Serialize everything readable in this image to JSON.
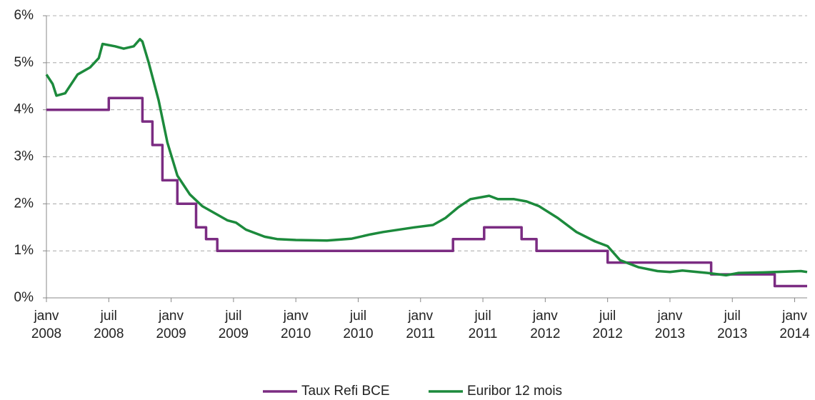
{
  "chart_data": {
    "type": "line",
    "xlim": [
      2008,
      2014.1
    ],
    "xticks": [
      {
        "value": 2008,
        "label": "janv 2008"
      },
      {
        "value": 2008.5,
        "label": "juil 2008"
      },
      {
        "value": 2009,
        "label": "janv 2009"
      },
      {
        "value": 2009.5,
        "label": "juil 2009"
      },
      {
        "value": 2010,
        "label": "janv 2010"
      },
      {
        "value": 2010.5,
        "label": "juil 2010"
      },
      {
        "value": 2011,
        "label": "janv 2011"
      },
      {
        "value": 2011.5,
        "label": "juil 2011"
      },
      {
        "value": 2012,
        "label": "janv 2012"
      },
      {
        "value": 2012.5,
        "label": "juil 2012"
      },
      {
        "value": 2013,
        "label": "janv 2013"
      },
      {
        "value": 2013.5,
        "label": "juil 2013"
      },
      {
        "value": 2014,
        "label": "janv 2014"
      }
    ],
    "ylim": [
      0,
      6
    ],
    "yticks": [
      {
        "value": 0,
        "label": "0%"
      },
      {
        "value": 1,
        "label": "1%"
      },
      {
        "value": 2,
        "label": "2%"
      },
      {
        "value": 3,
        "label": "3%"
      },
      {
        "value": 4,
        "label": "4%"
      },
      {
        "value": 5,
        "label": "5%"
      },
      {
        "value": 6,
        "label": "6%"
      }
    ],
    "grid": true,
    "legend": "bottom",
    "series": [
      {
        "name": "Taux Refi BCE",
        "color": "#7b2c82",
        "x": [
          2008,
          2008.5,
          2008.5,
          2008.77,
          2008.77,
          2008.85,
          2008.85,
          2008.93,
          2008.93,
          2009.05,
          2009.05,
          2009.2,
          2009.2,
          2009.28,
          2009.28,
          2009.37,
          2009.37,
          2011.26,
          2011.26,
          2011.51,
          2011.51,
          2011.81,
          2011.81,
          2011.93,
          2011.93,
          2012.5,
          2012.5,
          2013.33,
          2013.33,
          2013.84,
          2013.84,
          2014.1
        ],
        "values": [
          4,
          4,
          4.25,
          4.25,
          3.75,
          3.75,
          3.25,
          3.25,
          2.5,
          2.5,
          2,
          2,
          1.5,
          1.5,
          1.25,
          1.25,
          1,
          1,
          1.25,
          1.25,
          1.5,
          1.5,
          1.25,
          1.25,
          1,
          1,
          0.75,
          0.75,
          0.5,
          0.5,
          0.25,
          0.25
        ]
      },
      {
        "name": "Euribor 12 mois",
        "color": "#1c8a3c",
        "x": [
          2008,
          2008.05,
          2008.08,
          2008.15,
          2008.25,
          2008.35,
          2008.42,
          2008.45,
          2008.55,
          2008.62,
          2008.7,
          2008.75,
          2008.77,
          2008.82,
          2008.9,
          2008.97,
          2009.05,
          2009.15,
          2009.25,
          2009.35,
          2009.45,
          2009.52,
          2009.6,
          2009.75,
          2009.85,
          2010,
          2010.25,
          2010.45,
          2010.6,
          2010.7,
          2010.95,
          2011.1,
          2011.2,
          2011.3,
          2011.4,
          2011.55,
          2011.62,
          2011.75,
          2011.85,
          2011.95,
          2012.1,
          2012.25,
          2012.4,
          2012.5,
          2012.6,
          2012.75,
          2012.9,
          2013,
          2013.1,
          2013.3,
          2013.45,
          2013.55,
          2013.75,
          2013.95,
          2014.05,
          2014.1
        ],
        "values": [
          4.75,
          4.55,
          4.3,
          4.35,
          4.75,
          4.9,
          5.1,
          5.4,
          5.35,
          5.3,
          5.35,
          5.5,
          5.45,
          5.0,
          4.2,
          3.3,
          2.6,
          2.2,
          1.95,
          1.8,
          1.65,
          1.6,
          1.45,
          1.3,
          1.25,
          1.23,
          1.22,
          1.26,
          1.35,
          1.4,
          1.5,
          1.55,
          1.7,
          1.92,
          2.1,
          2.17,
          2.1,
          2.1,
          2.05,
          1.95,
          1.7,
          1.4,
          1.2,
          1.1,
          0.8,
          0.65,
          0.57,
          0.55,
          0.58,
          0.53,
          0.48,
          0.53,
          0.54,
          0.56,
          0.57,
          0.55
        ]
      }
    ]
  }
}
